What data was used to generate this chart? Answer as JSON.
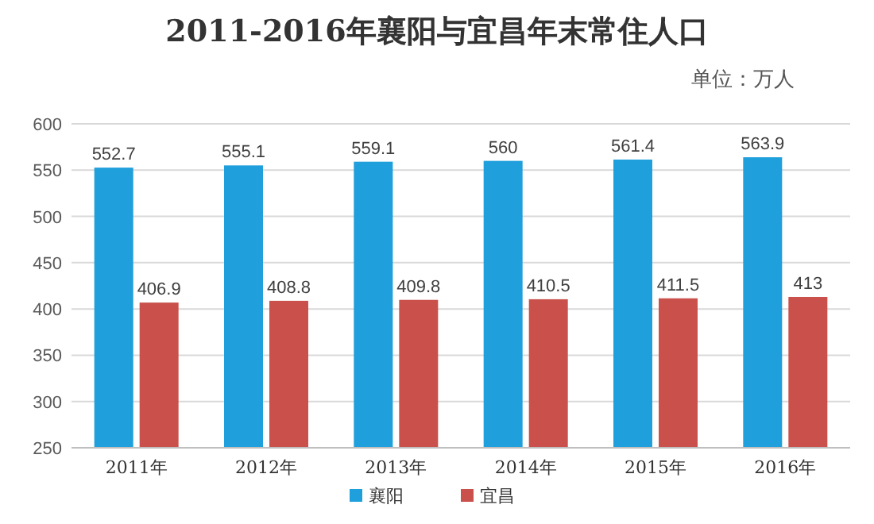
{
  "chart_data": {
    "type": "bar",
    "title": "2011-2016年襄阳与宜昌年末常住人口",
    "subtitle": "单位：万人",
    "categories": [
      "2011年",
      "2012年",
      "2013年",
      "2014年",
      "2015年",
      "2016年"
    ],
    "series": [
      {
        "name": "襄阳",
        "color": "#1f9fdb",
        "values": [
          552.7,
          555.1,
          559.1,
          560,
          561.4,
          563.9
        ]
      },
      {
        "name": "宜昌",
        "color": "#c9504b",
        "values": [
          406.9,
          408.8,
          409.8,
          410.5,
          411.5,
          413
        ]
      }
    ],
    "ylim": [
      250,
      600
    ],
    "yticks": [
      250,
      300,
      350,
      400,
      450,
      500,
      550,
      600
    ],
    "grid": "y",
    "legend": "bottom",
    "data_labels": true
  }
}
